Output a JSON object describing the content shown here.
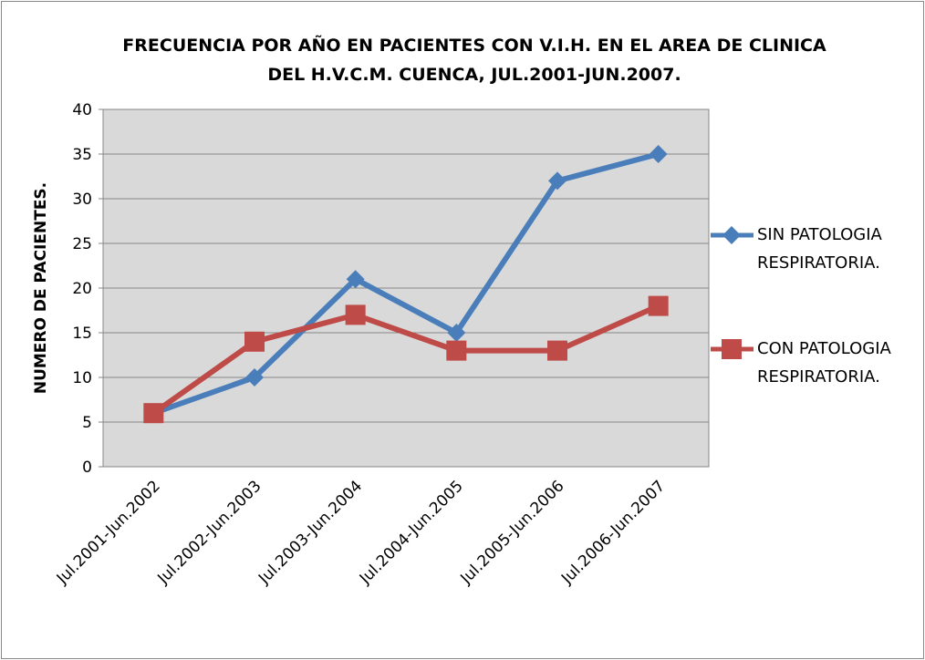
{
  "chart_data": {
    "type": "line",
    "title": "FRECUENCIA POR AÑO EN PACIENTES CON V.I.H. EN EL AREA DE CLINICA DEL H.V.C.M. CUENCA, JUL.2001-JUN.2007.",
    "y_label": "NUMERO DE PACIENTES.",
    "categories": [
      "Jul.2001-Jun.2002",
      "Jul.2002-Jun.2003",
      "Jul.2003-Jun.2004",
      "Jul.2004-Jun.2005",
      "Jul.2005-Jun.2006",
      "Jul.2006-Jun.2007"
    ],
    "series": [
      {
        "name": "SIN PATOLOGIA RESPIRATORIA.",
        "color": "#4a7ebb",
        "marker": "diamond",
        "values": [
          6,
          10,
          21,
          15,
          32,
          35
        ]
      },
      {
        "name": "CON PATOLOGIA RESPIRATORIA.",
        "color": "#be4b48",
        "marker": "square",
        "values": [
          6,
          14,
          17,
          13,
          13,
          18
        ]
      }
    ],
    "ylim": [
      0,
      40
    ],
    "yticks": [
      0,
      5,
      10,
      15,
      20,
      25,
      30,
      35,
      40
    ],
    "grid": true,
    "legend": "right"
  }
}
